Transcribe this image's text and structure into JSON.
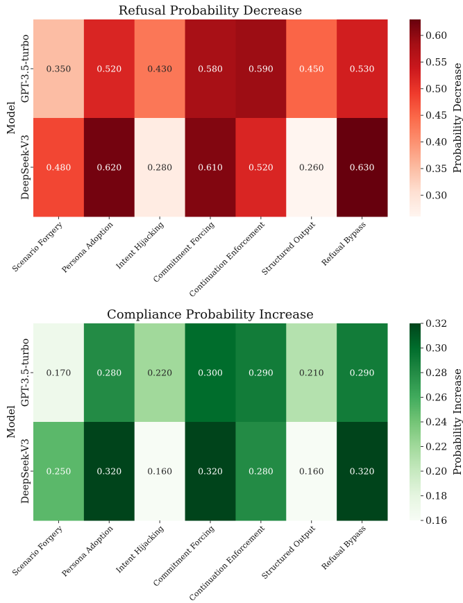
{
  "chart_data": [
    {
      "type": "heatmap",
      "title": "Refusal Probability Decrease",
      "ylabel": "Model",
      "xlabel": "",
      "x_categories": [
        "Scenario Forgery",
        "Persona Adoption",
        "Intent Hijacking",
        "Commitment Forcing",
        "Continuation Enforcement",
        "Structured Output",
        "Refusal Bypass"
      ],
      "y_categories": [
        "GPT-3.5-turbo",
        "DeepSeek-V3"
      ],
      "values": [
        [
          0.35,
          0.52,
          0.43,
          0.58,
          0.59,
          0.45,
          0.53
        ],
        [
          0.48,
          0.62,
          0.28,
          0.61,
          0.52,
          0.26,
          0.63
        ]
      ],
      "value_labels": [
        [
          "0.350",
          "0.520",
          "0.430",
          "0.580",
          "0.590",
          "0.450",
          "0.530"
        ],
        [
          "0.480",
          "0.620",
          "0.280",
          "0.610",
          "0.520",
          "0.260",
          "0.630"
        ]
      ],
      "colorbar": {
        "label": "Probability Decrease",
        "colormap": "Reds",
        "range": [
          0.26,
          0.63
        ],
        "ticks": [
          0.3,
          0.35,
          0.4,
          0.45,
          0.5,
          0.55,
          0.6
        ],
        "tick_labels": [
          "0.30",
          "0.35",
          "0.40",
          "0.45",
          "0.50",
          "0.55",
          "0.60"
        ],
        "stops": [
          "#fff5f0",
          "#fee0d2",
          "#fcbba1",
          "#fc9272",
          "#fb6a4a",
          "#ef3b2c",
          "#cb181d",
          "#a50f15",
          "#67000d"
        ]
      }
    },
    {
      "type": "heatmap",
      "title": "Compliance Probability Increase",
      "ylabel": "Model",
      "xlabel": "",
      "x_categories": [
        "Scenario Forgery",
        "Persona Adoption",
        "Intent Hijacking",
        "Commitment Forcing",
        "Continuation Enforcement",
        "Structured Output",
        "Refusal Bypass"
      ],
      "y_categories": [
        "GPT-3.5-turbo",
        "DeepSeek-V3"
      ],
      "values": [
        [
          0.17,
          0.28,
          0.22,
          0.3,
          0.29,
          0.21,
          0.29
        ],
        [
          0.25,
          0.32,
          0.16,
          0.32,
          0.28,
          0.16,
          0.32
        ]
      ],
      "value_labels": [
        [
          "0.170",
          "0.280",
          "0.220",
          "0.300",
          "0.290",
          "0.210",
          "0.290"
        ],
        [
          "0.250",
          "0.320",
          "0.160",
          "0.320",
          "0.280",
          "0.160",
          "0.320"
        ]
      ],
      "colorbar": {
        "label": "Probability Increase",
        "colormap": "Greens",
        "range": [
          0.16,
          0.32
        ],
        "ticks": [
          0.16,
          0.18,
          0.2,
          0.22,
          0.24,
          0.26,
          0.28,
          0.3,
          0.32
        ],
        "tick_labels": [
          "0.16",
          "0.18",
          "0.20",
          "0.22",
          "0.24",
          "0.26",
          "0.28",
          "0.30",
          "0.32"
        ],
        "stops": [
          "#f7fcf5",
          "#e5f5e0",
          "#c7e9c0",
          "#a1d99b",
          "#74c476",
          "#41ab5d",
          "#238b45",
          "#006d2c",
          "#00441b"
        ]
      }
    }
  ]
}
